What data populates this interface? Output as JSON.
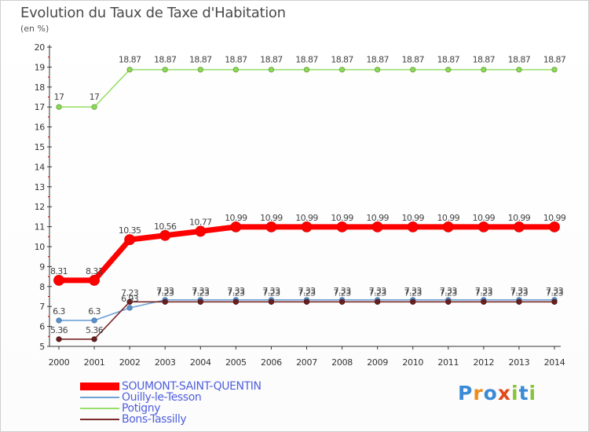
{
  "title": "Evolution du Taux de Taxe d'Habitation",
  "subtitle": "(en %)",
  "logo": {
    "text": "Proxiti",
    "colors": [
      "#3a8ad6",
      "#f08a1c",
      "#3a8ad6",
      "#e04a1a",
      "#8bc23c",
      "#3a8ad6",
      "#8bc23c"
    ]
  },
  "chart_data": {
    "type": "line",
    "x": [
      "2000",
      "2001",
      "2002",
      "2003",
      "2004",
      "2005",
      "2006",
      "2007",
      "2008",
      "2009",
      "2010",
      "2011",
      "2012",
      "2013",
      "2014"
    ],
    "ylim": [
      5,
      20
    ],
    "yticks": [
      5,
      6,
      7,
      8,
      9,
      10,
      11,
      12,
      13,
      14,
      15,
      16,
      17,
      18,
      19,
      20
    ],
    "grid": false,
    "legend_position": "bottom-left",
    "series": [
      {
        "name": "SOUMONT-SAINT-QUENTIN",
        "color": "#ff0000",
        "values": [
          8.31,
          8.31,
          10.35,
          10.56,
          10.77,
          10.99,
          10.99,
          10.99,
          10.99,
          10.99,
          10.99,
          10.99,
          10.99,
          10.99,
          10.99
        ],
        "labels": [
          "8.31",
          "8.31",
          "10.35",
          "10.56",
          "10.77",
          "10.99",
          "10.99",
          "10.99",
          "10.99",
          "10.99",
          "10.99",
          "10.99",
          "10.99",
          "10.99",
          "10.99"
        ]
      },
      {
        "name": "Ouilly-le-Tesson",
        "color": "#6fa3d6",
        "values": [
          6.3,
          6.3,
          6.93,
          7.33,
          7.33,
          7.33,
          7.33,
          7.33,
          7.33,
          7.33,
          7.33,
          7.33,
          7.33,
          7.33,
          7.33
        ],
        "labels": [
          "6.3",
          "6.3",
          "6.93",
          "7.33",
          "7.33",
          "7.33",
          "7.33",
          "7.33",
          "7.33",
          "7.33",
          "7.33",
          "7.33",
          "7.33",
          "7.33",
          "7.33"
        ]
      },
      {
        "name": "Potigny",
        "color": "#99e06b",
        "values": [
          17,
          17,
          18.87,
          18.87,
          18.87,
          18.87,
          18.87,
          18.87,
          18.87,
          18.87,
          18.87,
          18.87,
          18.87,
          18.87,
          18.87
        ],
        "labels": [
          "17",
          "17",
          "18.87",
          "18.87",
          "18.87",
          "18.87",
          "18.87",
          "18.87",
          "18.87",
          "18.87",
          "18.87",
          "18.87",
          "18.87",
          "18.87",
          "18.87"
        ]
      },
      {
        "name": "Bons-Tassilly",
        "color": "#7a2a2a",
        "values": [
          5.36,
          5.36,
          7.23,
          7.23,
          7.23,
          7.23,
          7.23,
          7.23,
          7.23,
          7.23,
          7.23,
          7.23,
          7.23,
          7.23,
          7.23
        ],
        "labels": [
          "5.36",
          "5.36",
          "7.23",
          "7.23",
          "7.23",
          "7.23",
          "7.23",
          "7.23",
          "7.23",
          "7.23",
          "7.23",
          "7.23",
          "7.23",
          "7.23",
          "7.23"
        ]
      }
    ]
  }
}
